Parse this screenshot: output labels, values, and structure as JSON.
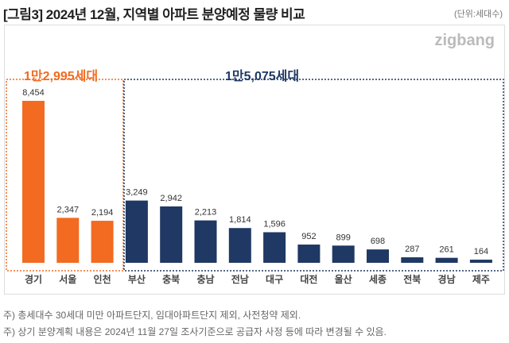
{
  "title": "[그림3] 2024년 12월, 지역별 아파트 분양예정 물량 비교",
  "unit": "(단위:세대수)",
  "logo": "zigbang",
  "groups": [
    {
      "label": "1만2,995세대",
      "color": "#f26b21"
    },
    {
      "label": "1만5,075세대",
      "color": "#1f3864"
    }
  ],
  "chart_data": {
    "type": "bar",
    "categories": [
      "경기",
      "서울",
      "인천",
      "부산",
      "충북",
      "충남",
      "전남",
      "대구",
      "대전",
      "울산",
      "세종",
      "전북",
      "경남",
      "제주"
    ],
    "values": [
      8454,
      2347,
      2194,
      3249,
      2942,
      2213,
      1814,
      1596,
      952,
      899,
      698,
      287,
      261,
      164
    ],
    "data_labels": [
      "8,454",
      "2,347",
      "2,194",
      "3,249",
      "2,942",
      "2,213",
      "1,814",
      "1,596",
      "952",
      "899",
      "698",
      "287",
      "261",
      "164"
    ],
    "group_of_category": [
      0,
      0,
      0,
      1,
      1,
      1,
      1,
      1,
      1,
      1,
      1,
      1,
      1,
      1
    ],
    "colors": {
      "capital": "#f26b21",
      "other": "#1f3864"
    },
    "grid": false
  },
  "notes": [
    "주) 총세대수 30세대 미만 아파트단지, 임대아파트단지 제외, 사전청약 제외.",
    "주) 상기 분양계획 내용은 2024년 11월 27일 조사기준으로 공급자 사정 등에 따라 변경될 수 있음."
  ]
}
